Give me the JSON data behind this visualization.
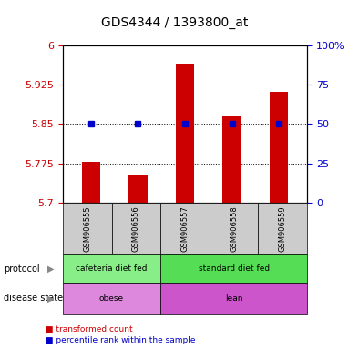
{
  "title": "GDS4344 / 1393800_at",
  "samples": [
    "GSM906555",
    "GSM906556",
    "GSM906557",
    "GSM906558",
    "GSM906559"
  ],
  "bar_values": [
    5.778,
    5.752,
    5.965,
    5.865,
    5.912
  ],
  "percentile_values": [
    50,
    50,
    50,
    50,
    50
  ],
  "ymin": 5.7,
  "ymax": 6.0,
  "yticks": [
    5.7,
    5.775,
    5.85,
    5.925,
    6.0
  ],
  "ytick_labels": [
    "5.7",
    "5.775",
    "5.85",
    "5.925",
    "6"
  ],
  "right_yticks": [
    0,
    25,
    50,
    75,
    100
  ],
  "right_ytick_labels": [
    "0",
    "25",
    "50",
    "75",
    "100%"
  ],
  "bar_color": "#cc0000",
  "dot_color": "#0000cc",
  "protocol_labels": [
    "cafeteria diet fed",
    "standard diet fed"
  ],
  "protocol_colors": [
    "#88ee88",
    "#55dd55"
  ],
  "protocol_spans": [
    2,
    3
  ],
  "disease_labels": [
    "obese",
    "lean"
  ],
  "disease_colors": [
    "#dd88dd",
    "#cc55cc"
  ],
  "disease_spans": [
    2,
    3
  ],
  "legend_red_label": "transformed count",
  "legend_blue_label": "percentile rank within the sample",
  "bg_color": "#ffffff",
  "label_protocol": "protocol",
  "label_disease": "disease state",
  "tick_color_left": "#cc0000",
  "tick_color_right": "#0000cc"
}
